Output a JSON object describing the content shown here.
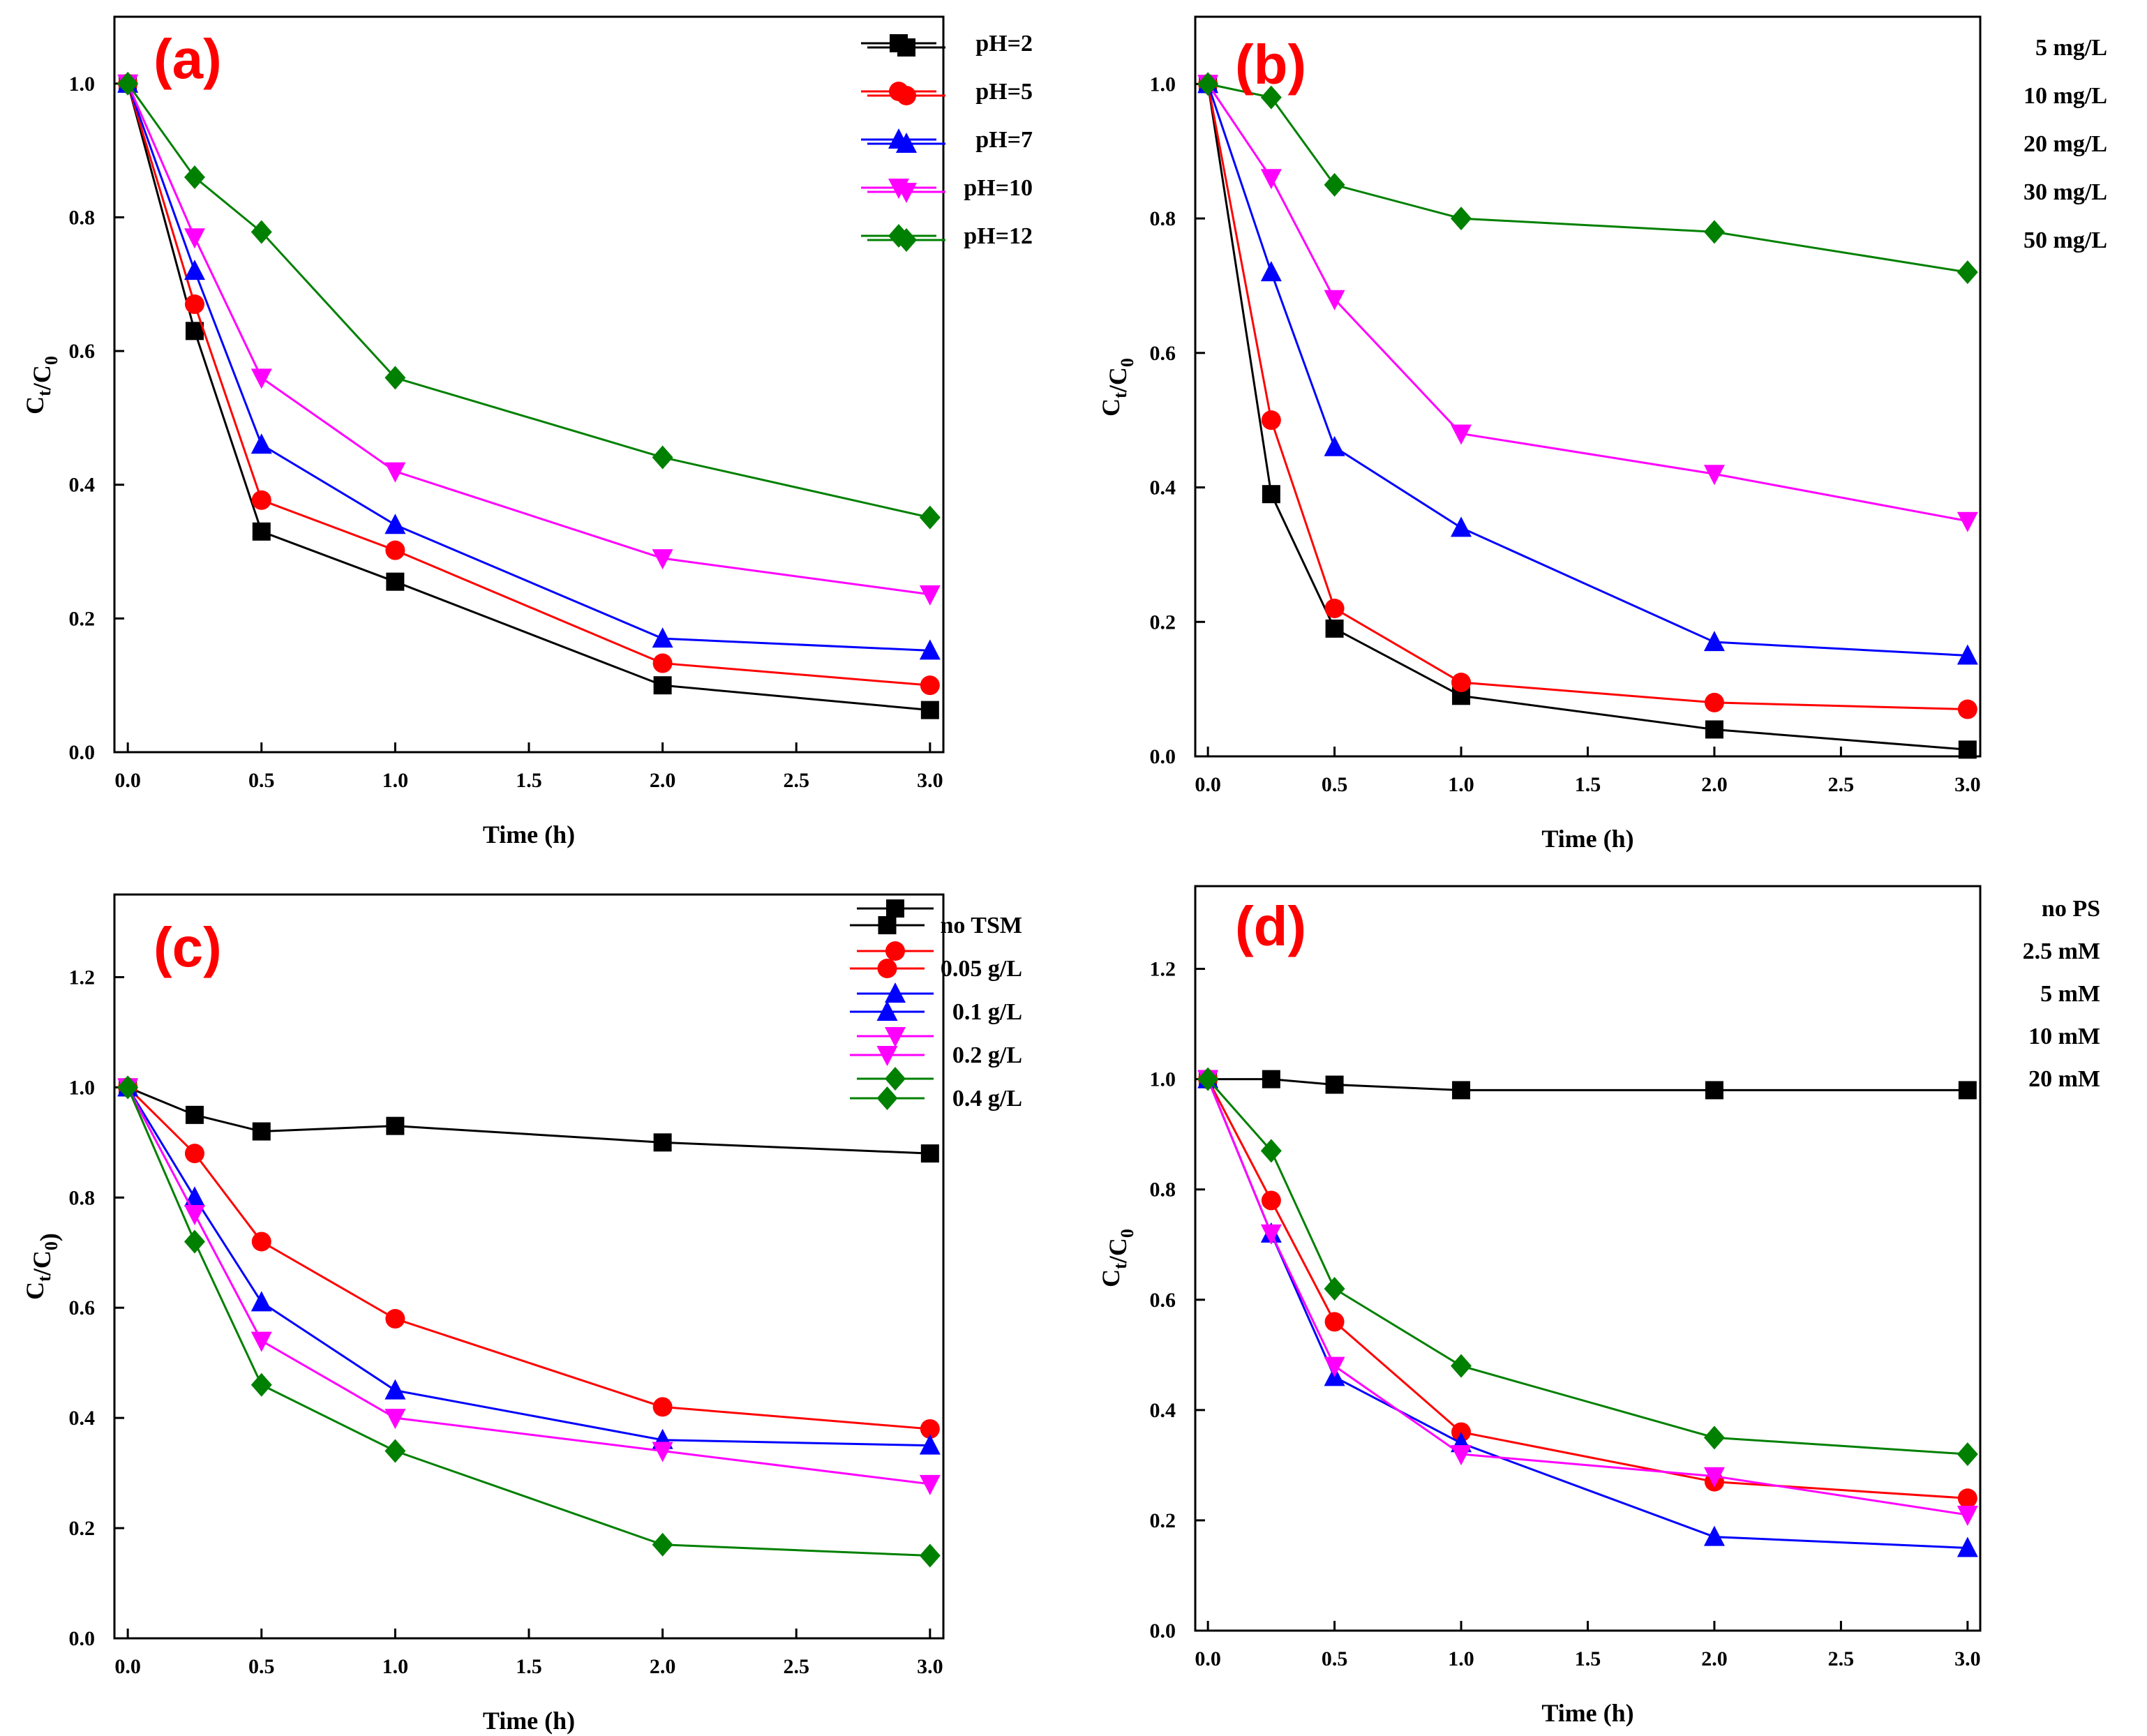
{
  "colors": {
    "black": "#000000",
    "red": "#ff0000",
    "blue": "#0000ff",
    "magenta": "#ff00ff",
    "green": "#008000",
    "panel_label": "#ff0000"
  },
  "chart_data": [
    {
      "type": "line",
      "panel_label": "(a)",
      "xlabel": "Time (h)",
      "ylabel_main": "C",
      "ylabel_sub1": "t",
      "ylabel_mid": "/C",
      "ylabel_sub2": "0",
      "xlim": [
        -0.05,
        3.05
      ],
      "ylim": [
        0.0,
        1.1
      ],
      "xticks": [
        0.0,
        0.5,
        1.0,
        1.5,
        2.0,
        2.5,
        3.0
      ],
      "xtick_labels": [
        "0.0",
        "0.5",
        "1.0",
        "1.5",
        "2.0",
        "2.5",
        "3.0"
      ],
      "yticks": [
        0.0,
        0.2,
        0.4,
        0.6,
        0.8,
        1.0
      ],
      "ytick_labels": [
        "0.0",
        "0.2",
        "0.4",
        "0.6",
        "0.8",
        "1.0"
      ],
      "legend_position": "top-right",
      "x": [
        0,
        0.25,
        0.5,
        1.0,
        2.0,
        3.0
      ],
      "series": [
        {
          "name": "pH=2",
          "color": "#000000",
          "marker": "square",
          "values": [
            1.0,
            0.63,
            0.33,
            0.255,
            0.1,
            0.063
          ]
        },
        {
          "name": "pH=5",
          "color": "#ff0000",
          "marker": "circle",
          "values": [
            1.0,
            0.67,
            0.377,
            0.302,
            0.133,
            0.1
          ]
        },
        {
          "name": "pH=7",
          "color": "#0000ff",
          "marker": "triangle-up",
          "values": [
            1.0,
            0.72,
            0.46,
            0.34,
            0.17,
            0.152
          ]
        },
        {
          "name": "pH=10",
          "color": "#ff00ff",
          "marker": "triangle-down",
          "values": [
            1.0,
            0.77,
            0.56,
            0.42,
            0.29,
            0.236
          ]
        },
        {
          "name": "pH=12",
          "color": "#008000",
          "marker": "diamond",
          "values": [
            1.0,
            0.86,
            0.778,
            0.56,
            0.441,
            0.351
          ]
        }
      ]
    },
    {
      "type": "line",
      "panel_label": "(b)",
      "xlabel": "Time (h)",
      "ylabel_main": "C",
      "ylabel_sub1": "t",
      "ylabel_mid": "/C",
      "ylabel_sub2": "0",
      "xlim": [
        -0.05,
        3.05
      ],
      "ylim": [
        0.0,
        1.1
      ],
      "xticks": [
        0.0,
        0.5,
        1.0,
        1.5,
        2.0,
        2.5,
        3.0
      ],
      "xtick_labels": [
        "0.0",
        "0.5",
        "1.0",
        "1.5",
        "2.0",
        "2.5",
        "3.0"
      ],
      "yticks": [
        0.0,
        0.2,
        0.4,
        0.6,
        0.8,
        1.0
      ],
      "ytick_labels": [
        "0.0",
        "0.2",
        "0.4",
        "0.6",
        "0.8",
        "1.0"
      ],
      "legend_position": "top-right",
      "x": [
        0,
        0.25,
        0.5,
        1.0,
        2.0,
        3.0
      ],
      "series": [
        {
          "name": "5 mg/L",
          "color": "#000000",
          "marker": "square",
          "values": [
            1.0,
            0.39,
            0.19,
            0.09,
            0.04,
            0.01
          ]
        },
        {
          "name": "10 mg/L",
          "color": "#ff0000",
          "marker": "circle",
          "values": [
            1.0,
            0.5,
            0.22,
            0.11,
            0.08,
            0.07
          ]
        },
        {
          "name": "20 mg/L",
          "color": "#0000ff",
          "marker": "triangle-up",
          "values": [
            1.0,
            0.72,
            0.46,
            0.34,
            0.17,
            0.15
          ]
        },
        {
          "name": "30 mg/L",
          "color": "#ff00ff",
          "marker": "triangle-down",
          "values": [
            1.0,
            0.86,
            0.68,
            0.48,
            0.42,
            0.35
          ]
        },
        {
          "name": "50 mg/L",
          "color": "#008000",
          "marker": "diamond",
          "values": [
            1.0,
            0.98,
            0.85,
            0.8,
            0.78,
            0.72
          ]
        }
      ]
    },
    {
      "type": "line",
      "panel_label": "(c)",
      "xlabel": "Time (h)",
      "ylabel_main": "C",
      "ylabel_sub1": "t",
      "ylabel_mid": "/C",
      "ylabel_sub2": "0",
      "ylabel_close": ")",
      "xlim": [
        -0.05,
        3.05
      ],
      "ylim": [
        0.0,
        1.35
      ],
      "xticks": [
        0.0,
        0.5,
        1.0,
        1.5,
        2.0,
        2.5,
        3.0
      ],
      "xtick_labels": [
        "0.0",
        "0.5",
        "1.0",
        "1.5",
        "2.0",
        "2.5",
        "3.0"
      ],
      "yticks": [
        0.0,
        0.2,
        0.4,
        0.6,
        0.8,
        1.0,
        1.2
      ],
      "ytick_labels": [
        "0.0",
        "0.2",
        "0.4",
        "0.6",
        "0.8",
        "1.0",
        "1.2"
      ],
      "legend_position": "top-right",
      "x": [
        0,
        0.25,
        0.5,
        1.0,
        2.0,
        3.0
      ],
      "series": [
        {
          "name": "no TSM",
          "color": "#000000",
          "marker": "square",
          "values": [
            1.0,
            0.95,
            0.92,
            0.93,
            0.9,
            0.88
          ]
        },
        {
          "name": "0.05 g/L",
          "color": "#ff0000",
          "marker": "circle",
          "values": [
            1.0,
            0.88,
            0.72,
            0.58,
            0.42,
            0.38
          ]
        },
        {
          "name": "0.1 g/L",
          "color": "#0000ff",
          "marker": "triangle-up",
          "values": [
            1.0,
            0.8,
            0.61,
            0.45,
            0.36,
            0.35
          ]
        },
        {
          "name": "0.2 g/L",
          "color": "#ff00ff",
          "marker": "triangle-down",
          "values": [
            1.0,
            0.77,
            0.54,
            0.4,
            0.34,
            0.28
          ]
        },
        {
          "name": "0.4 g/L",
          "color": "#008000",
          "marker": "diamond",
          "values": [
            1.0,
            0.72,
            0.46,
            0.34,
            0.17,
            0.15
          ]
        }
      ]
    },
    {
      "type": "line",
      "panel_label": "(d)",
      "xlabel": "Time (h)",
      "ylabel_main": "C",
      "ylabel_sub1": "t",
      "ylabel_mid": "/C",
      "ylabel_sub2": "0",
      "xlim": [
        -0.05,
        3.05
      ],
      "ylim": [
        0.0,
        1.35
      ],
      "xticks": [
        0.0,
        0.5,
        1.0,
        1.5,
        2.0,
        2.5,
        3.0
      ],
      "xtick_labels": [
        "0.0",
        "0.5",
        "1.0",
        "1.5",
        "2.0",
        "2.5",
        "3.0"
      ],
      "yticks": [
        0.0,
        0.2,
        0.4,
        0.6,
        0.8,
        1.0,
        1.2
      ],
      "ytick_labels": [
        "0.0",
        "0.2",
        "0.4",
        "0.6",
        "0.8",
        "1.0",
        "1.2"
      ],
      "legend_position": "top-right",
      "x": [
        0,
        0.25,
        0.5,
        1.0,
        2.0,
        3.0
      ],
      "series": [
        {
          "name": "no PS",
          "color": "#000000",
          "marker": "square",
          "values": [
            1.0,
            1.0,
            0.99,
            0.98,
            0.98,
            0.98
          ]
        },
        {
          "name": "2.5 mM",
          "color": "#ff0000",
          "marker": "circle",
          "values": [
            1.0,
            0.78,
            0.56,
            0.36,
            0.27,
            0.24
          ]
        },
        {
          "name": "5 mM",
          "color": "#0000ff",
          "marker": "triangle-up",
          "values": [
            1.0,
            0.72,
            0.46,
            0.34,
            0.17,
            0.15
          ]
        },
        {
          "name": "10 mM",
          "color": "#ff00ff",
          "marker": "triangle-down",
          "values": [
            1.0,
            0.72,
            0.48,
            0.32,
            0.28,
            0.21
          ]
        },
        {
          "name": "20 mM",
          "color": "#008000",
          "marker": "diamond",
          "values": [
            1.0,
            0.87,
            0.62,
            0.48,
            0.35,
            0.32
          ]
        }
      ]
    }
  ]
}
